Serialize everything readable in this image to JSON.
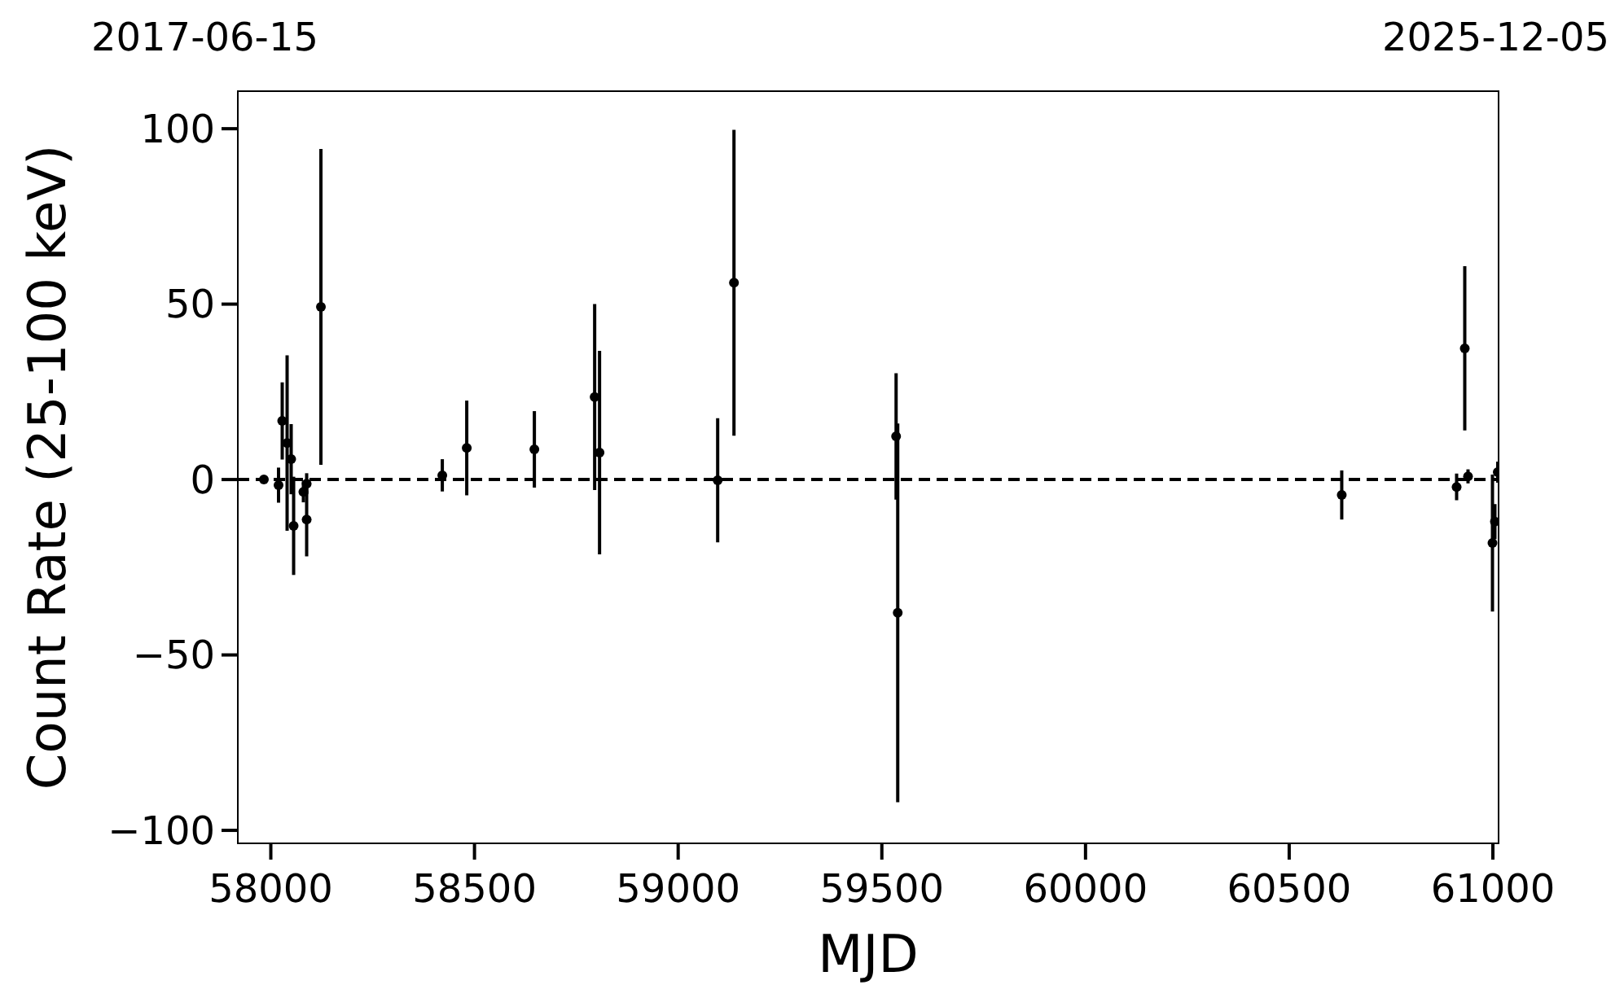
{
  "chart_data": {
    "type": "scatter",
    "xlabel": "MJD",
    "ylabel": "Count Rate (25-100 keV)",
    "annotations": [
      "2017-06-15",
      "2025-12-05"
    ],
    "x": [
      57983,
      58019,
      58028,
      58040,
      58050,
      58056,
      58080,
      58088,
      58088,
      58123,
      58421,
      58481,
      58647,
      58795,
      58807,
      59097,
      59137,
      59535,
      59539,
      60629,
      60911,
      60931,
      60939,
      60999,
      61005,
      61012
    ],
    "series": [
      {
        "color": "#000000",
        "values": [
          0,
          -1.6,
          16.7,
          10.4,
          5.8,
          -13.2,
          -3.5,
          -1.2,
          -11.4,
          49.2,
          1.2,
          9,
          8.6,
          23.5,
          7.7,
          -0.2,
          56.1,
          12.3,
          -38,
          -4.4,
          -2.1,
          37.4,
          0.9,
          -18.1,
          -12,
          2.1
        ],
        "errors": [
          null,
          5,
          11,
          25,
          10,
          14,
          3,
          3,
          10.5,
          45,
          4.6,
          13.5,
          10.9,
          26.5,
          29,
          17.7,
          43.6,
          18,
          54,
          7,
          3.8,
          23.4,
          2,
          19.5,
          5,
          3
        ]
      }
    ],
    "xlim": [
      57919,
      61014
    ],
    "ylim": [
      -103.7,
      110.7
    ],
    "xticks": [
      58000,
      58500,
      59000,
      59500,
      60000,
      60500,
      61000
    ],
    "yticks": [
      {
        "value": -100,
        "label": "−100"
      },
      {
        "value": -50,
        "label": "−50"
      },
      0,
      50,
      100
    ],
    "ref_lines": [
      {
        "axis": "y",
        "value": 0,
        "color": "#000000",
        "line_style": "dashed"
      }
    ],
    "marker": "circle"
  }
}
